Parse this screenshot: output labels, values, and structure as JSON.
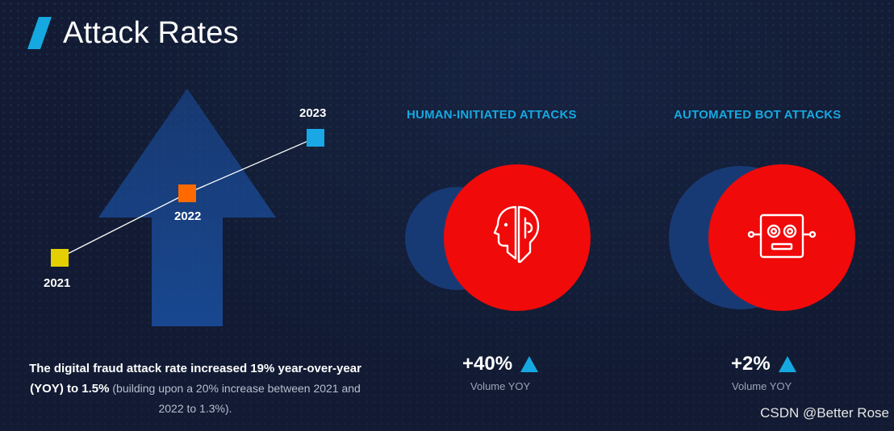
{
  "page": {
    "title": "Attack Rates"
  },
  "colors": {
    "background": "#121b33",
    "accent": "#16a8e0",
    "red": "#f00a0a",
    "arrow": "#1a4fa0",
    "marker_2021": "#e6cf00",
    "marker_2022": "#ff6a00",
    "marker_2023": "#1aa7e6"
  },
  "trend": {
    "points": [
      {
        "label": "2021",
        "color": "#e6cf00"
      },
      {
        "label": "2022",
        "color": "#ff6a00"
      },
      {
        "label": "2023",
        "color": "#1aa7e6"
      }
    ]
  },
  "human": {
    "heading": "HUMAN-INITIATED ATTACKS",
    "value": "+40%",
    "caption": "Volume YOY",
    "icon": "human-head-icon"
  },
  "bot": {
    "heading": "AUTOMATED BOT ATTACKS",
    "value": "+2%",
    "caption": "Volume YOY",
    "icon": "robot-icon"
  },
  "summary": {
    "bold_line": "The digital fraud attack rate increased 19% year-over-year (YOY) to 1.5%",
    "light_line": " (building upon a 20% increase between 2021 and 2022 to 1.3%)."
  },
  "watermark": "CSDN @Better Rose"
}
